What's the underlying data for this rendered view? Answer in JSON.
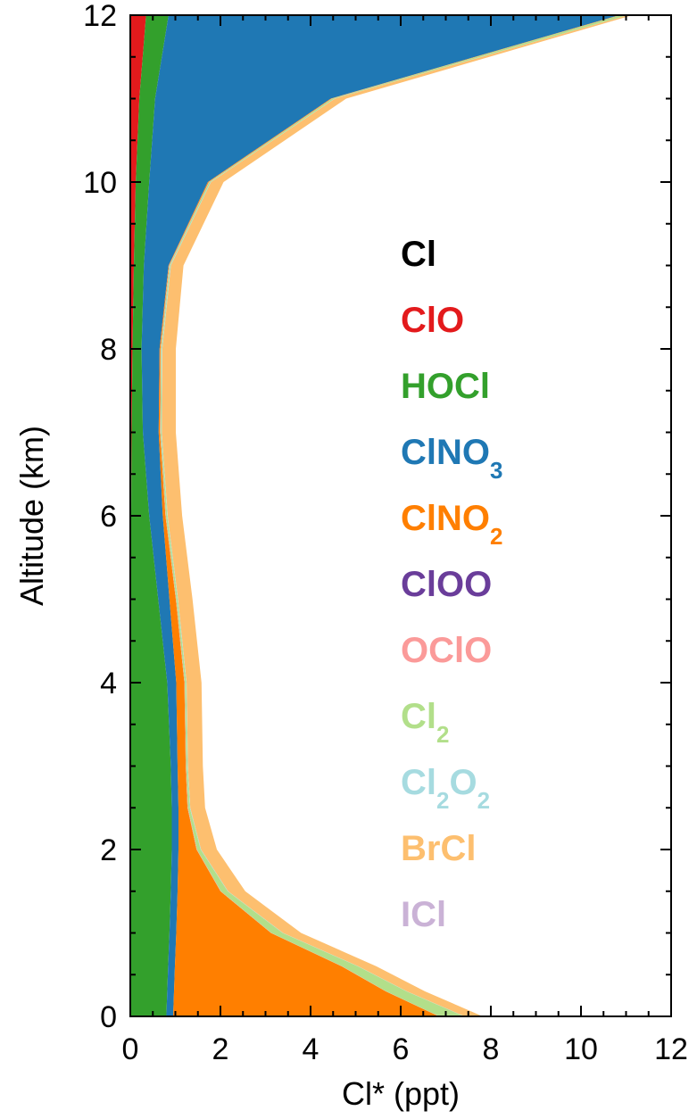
{
  "chart_data": {
    "type": "area",
    "stacking": "cumulative",
    "xlabel": "Cl* (ppt)",
    "ylabel": "Altitude (km)",
    "xlim": [
      0,
      12
    ],
    "ylim": [
      0,
      12
    ],
    "xticks": [
      0,
      2,
      4,
      6,
      8,
      10,
      12
    ],
    "yticks": [
      0,
      2,
      4,
      6,
      8,
      10,
      12
    ],
    "x_minor_step": 0.5,
    "y_minor_step": 0.5,
    "grid": false,
    "legend_position": "inside-right",
    "altitude": [
      0,
      0.3,
      0.6,
      1.0,
      1.5,
      2.0,
      2.5,
      3.0,
      4.0,
      5.0,
      6.0,
      7.0,
      8.0,
      9.0,
      10.0,
      11.0,
      12.0
    ],
    "series": [
      {
        "label_main": "Cl",
        "label_sub": "",
        "color": "#000000",
        "values": [
          0.0,
          0.0,
          0.0,
          0.0,
          0.0,
          0.0,
          0.0,
          0.0,
          0.0,
          0.0,
          0.0,
          0.0,
          0.0,
          0.0,
          0.0,
          0.0,
          0.0
        ]
      },
      {
        "label_main": "ClO",
        "label_sub": "",
        "color": "#e31a1c",
        "values": [
          0.02,
          0.02,
          0.02,
          0.02,
          0.02,
          0.02,
          0.02,
          0.02,
          0.02,
          0.02,
          0.02,
          0.03,
          0.05,
          0.08,
          0.12,
          0.2,
          0.35
        ]
      },
      {
        "label_main": "HOCl",
        "label_sub": "",
        "color": "#33a02c",
        "values": [
          0.78,
          0.8,
          0.82,
          0.85,
          0.88,
          0.9,
          0.9,
          0.88,
          0.8,
          0.6,
          0.4,
          0.25,
          0.2,
          0.22,
          0.3,
          0.35,
          0.5
        ]
      },
      {
        "label_main": "ClNO",
        "label_sub": "3",
        "color": "#1f78b4",
        "values": [
          0.15,
          0.15,
          0.15,
          0.15,
          0.15,
          0.15,
          0.15,
          0.15,
          0.2,
          0.25,
          0.3,
          0.35,
          0.4,
          0.55,
          1.3,
          3.9,
          10.0
        ]
      },
      {
        "label_main": "ClNO",
        "label_sub": "2",
        "color": "#ff7f00",
        "values": [
          5.9,
          4.7,
          3.7,
          2.1,
          0.95,
          0.4,
          0.2,
          0.18,
          0.18,
          0.14,
          0.06,
          0.03,
          0.02,
          0.01,
          0.02,
          0.02,
          0.02
        ]
      },
      {
        "label_main": "ClOO",
        "label_sub": "",
        "color": "#6a3d9a",
        "values": [
          0.0,
          0.0,
          0.0,
          0.0,
          0.0,
          0.0,
          0.0,
          0.0,
          0.0,
          0.0,
          0.0,
          0.0,
          0.0,
          0.0,
          0.0,
          0.0,
          0.0
        ]
      },
      {
        "label_main": "OClO",
        "label_sub": "",
        "color": "#fb9a99",
        "values": [
          0.01,
          0.01,
          0.01,
          0.01,
          0.01,
          0.01,
          0.01,
          0.01,
          0.01,
          0.01,
          0.01,
          0.01,
          0.01,
          0.01,
          0.01,
          0.01,
          0.01
        ]
      },
      {
        "label_main": "Cl",
        "label_sub": "2",
        "color": "#b2df8a",
        "values": [
          0.55,
          0.45,
          0.35,
          0.25,
          0.15,
          0.08,
          0.04,
          0.03,
          0.03,
          0.03,
          0.03,
          0.02,
          0.02,
          0.02,
          0.03,
          0.05,
          0.15
        ]
      },
      {
        "label_main": "Cl",
        "label_sub": "2",
        "label_main2": "O",
        "label_sub2": "2",
        "color": "#a6dbe0",
        "values": [
          0.01,
          0.01,
          0.01,
          0.01,
          0.01,
          0.01,
          0.01,
          0.01,
          0.01,
          0.01,
          0.01,
          0.01,
          0.01,
          0.01,
          0.01,
          0.01,
          0.01
        ]
      },
      {
        "label_main": "BrCl",
        "label_sub": "",
        "color": "#fdbf6f",
        "values": [
          0.4,
          0.4,
          0.4,
          0.4,
          0.38,
          0.35,
          0.33,
          0.33,
          0.33,
          0.32,
          0.32,
          0.31,
          0.3,
          0.28,
          0.28,
          0.25,
          0.1
        ]
      },
      {
        "label_main": "ICl",
        "label_sub": "",
        "color": "#cab2d6",
        "values": [
          0.0,
          0.0,
          0.0,
          0.0,
          0.0,
          0.0,
          0.0,
          0.0,
          0.0,
          0.0,
          0.0,
          0.0,
          0.0,
          0.0,
          0.0,
          0.0,
          0.0
        ]
      }
    ]
  }
}
